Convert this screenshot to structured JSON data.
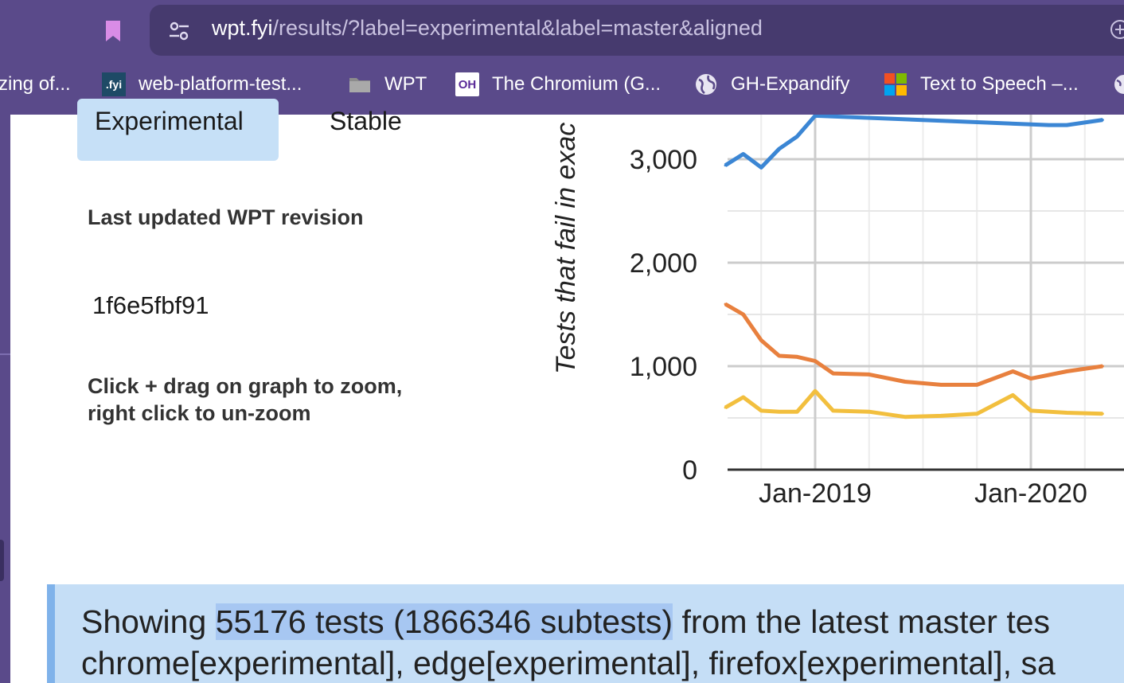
{
  "browser": {
    "url_host": "wpt.fyi",
    "url_path": "/results/?label=experimental&label=master&aligned",
    "bookmarks": [
      {
        "label": "zing of...",
        "icon": "none"
      },
      {
        "label": "web-platform-test...",
        "icon": "fyi-icon"
      },
      {
        "label": "WPT",
        "icon": "folder-icon"
      },
      {
        "label": "The Chromium (G...",
        "icon": "oh-icon"
      },
      {
        "label": "GH-Expandify",
        "icon": "globe-icon"
      },
      {
        "label": "Text to Speech –...",
        "icon": "microsoft-icon"
      }
    ]
  },
  "tabs": {
    "experimental": "Experimental",
    "stable": "Stable"
  },
  "revision": {
    "heading": "Last updated WPT revision",
    "value": "1f6e5fbf91"
  },
  "hint": {
    "line1": "Click + drag on graph to zoom,",
    "line2": "right click to un-zoom"
  },
  "chart_data": {
    "type": "line",
    "ylabel": "Tests that fail in exac",
    "y_ticks": [
      "0",
      "1,000",
      "2,000",
      "3,000"
    ],
    "x_ticks": [
      "Jan-2019",
      "Jan-2020"
    ],
    "ylim": [
      0,
      3450
    ],
    "grid": true,
    "colors": {
      "blue": "#3b86d4",
      "orange": "#e8803e",
      "yellow": "#f2bf3e"
    },
    "series": [
      {
        "color": "blue",
        "x": [
          "2018-08",
          "2018-09",
          "2018-10",
          "2018-11",
          "2018-12",
          "2019-01",
          "2020-02",
          "2020-03",
          "2020-05"
        ],
        "values": [
          2940,
          3050,
          2920,
          3100,
          3220,
          3420,
          3330,
          3330,
          3380
        ]
      },
      {
        "color": "orange",
        "x": [
          "2018-08",
          "2018-09",
          "2018-10",
          "2018-11",
          "2018-12",
          "2019-01",
          "2019-02",
          "2019-04",
          "2019-06",
          "2019-08",
          "2019-10",
          "2019-12",
          "2020-01",
          "2020-03",
          "2020-05"
        ],
        "values": [
          1600,
          1500,
          1250,
          1100,
          1090,
          1050,
          930,
          920,
          850,
          820,
          820,
          950,
          880,
          950,
          1000
        ]
      },
      {
        "color": "yellow",
        "x": [
          "2018-08",
          "2018-09",
          "2018-10",
          "2018-11",
          "2018-12",
          "2019-01",
          "2019-02",
          "2019-04",
          "2019-06",
          "2019-08",
          "2019-10",
          "2019-12",
          "2020-01",
          "2020-03",
          "2020-05"
        ],
        "values": [
          600,
          700,
          570,
          560,
          560,
          760,
          570,
          560,
          510,
          520,
          540,
          720,
          570,
          550,
          540
        ]
      }
    ]
  },
  "summary": {
    "prefix": "Showing",
    "highlight": "55176 tests (1866346 subtests)",
    "suffix": "from the latest master tes",
    "line2": "chrome[experimental], edge[experimental], firefox[experimental], sa"
  }
}
